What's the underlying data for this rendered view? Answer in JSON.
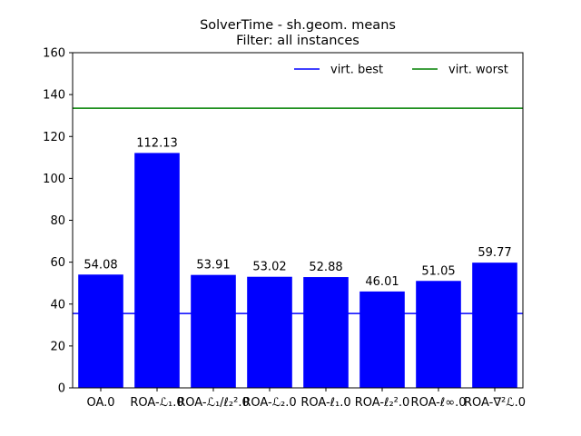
{
  "chart_data": {
    "type": "bar",
    "title": "SolverTime - sh.geom. means",
    "subtitle": "Filter: all instances",
    "xlabel": "",
    "ylabel": "",
    "ylim": [
      0,
      160
    ],
    "yticks": [
      0,
      20,
      40,
      60,
      80,
      100,
      120,
      140,
      160
    ],
    "categories": [
      "OA.0",
      "ROA-ℒ₁.0",
      "ROA-ℒ₁/ℓ₂².0",
      "ROA-ℒ₂.0",
      "ROA-ℓ₁.0",
      "ROA-ℓ₂².0",
      "ROA-ℓ∞.0",
      "ROA-∇²ℒ.0"
    ],
    "values": [
      54.08,
      112.13,
      53.91,
      53.02,
      52.88,
      46.01,
      51.05,
      59.77
    ],
    "value_labels": [
      "54.08",
      "112.13",
      "53.91",
      "53.02",
      "52.88",
      "46.01",
      "51.05",
      "59.77"
    ],
    "bar_color": "#0000ff",
    "reference_lines": [
      {
        "name": "virt. best",
        "value": 35.5,
        "color": "#0000ff"
      },
      {
        "name": "virt. worst",
        "value": 133.5,
        "color": "#008000"
      }
    ],
    "legend": {
      "position": "top-right",
      "frame": false
    },
    "grid": false
  }
}
